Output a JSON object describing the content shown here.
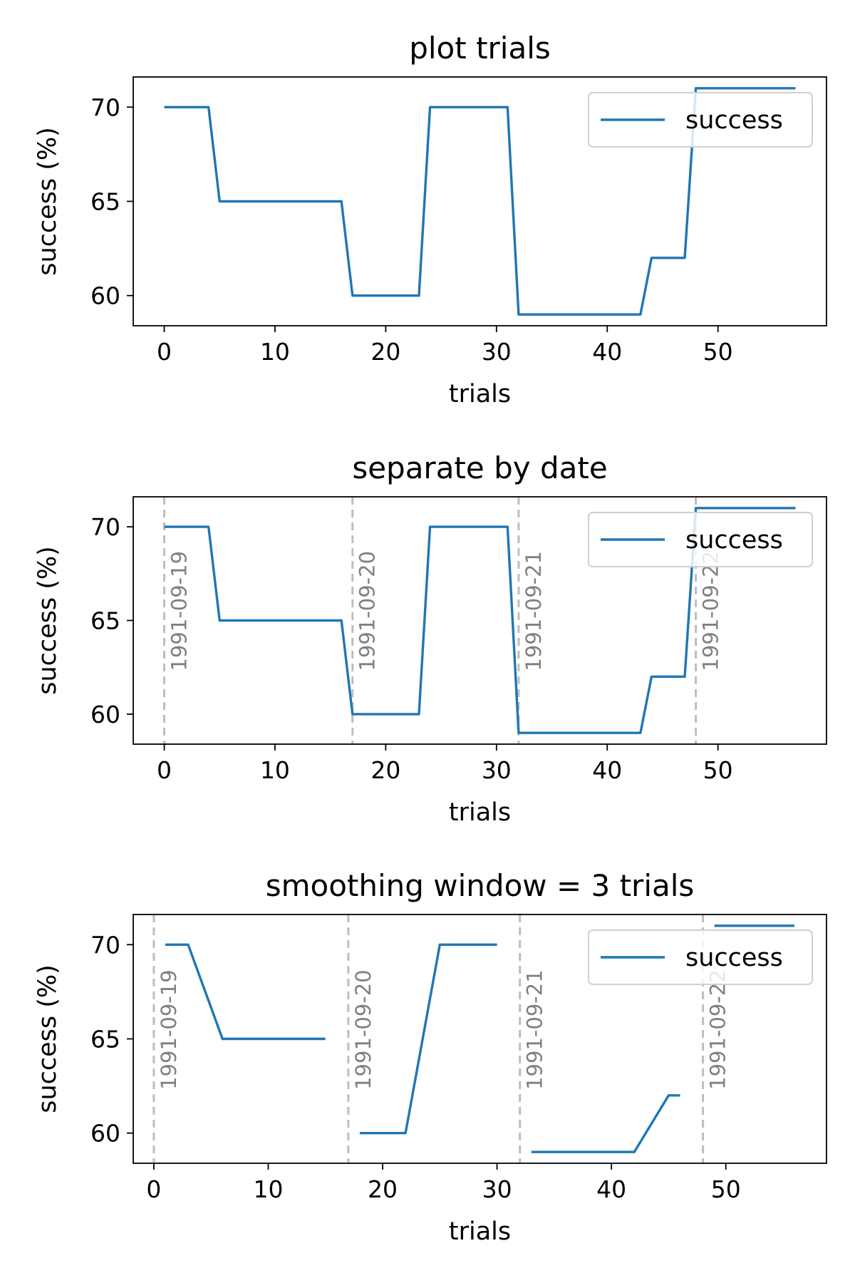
{
  "chart_data": [
    {
      "type": "line",
      "title": "plot trials",
      "xlabel": "trials",
      "ylabel": "success (%)",
      "xlim": [
        -2.8,
        59.8
      ],
      "ylim": [
        58.4,
        71.6
      ],
      "xticks": [
        0,
        10,
        20,
        30,
        40,
        50
      ],
      "yticks": [
        60,
        65,
        70
      ],
      "legend": {
        "position": "top-right",
        "entries": [
          "success"
        ]
      },
      "date_markers": [],
      "series": [
        {
          "name": "success",
          "x": [
            0,
            1,
            2,
            3,
            4,
            5,
            6,
            7,
            8,
            9,
            10,
            11,
            12,
            13,
            14,
            15,
            16,
            17,
            18,
            19,
            20,
            21,
            22,
            23,
            24,
            25,
            26,
            27,
            28,
            29,
            30,
            31,
            32,
            33,
            34,
            35,
            36,
            37,
            38,
            39,
            40,
            41,
            42,
            43,
            44,
            45,
            46,
            47,
            48,
            49,
            50,
            51,
            52,
            53,
            54,
            55,
            56,
            57
          ],
          "y": [
            70,
            70,
            70,
            70,
            70,
            65,
            65,
            65,
            65,
            65,
            65,
            65,
            65,
            65,
            65,
            65,
            65,
            60,
            60,
            60,
            60,
            60,
            60,
            60,
            70,
            70,
            70,
            70,
            70,
            70,
            70,
            70,
            59,
            59,
            59,
            59,
            59,
            59,
            59,
            59,
            59,
            59,
            59,
            59,
            62,
            62,
            62,
            62,
            71,
            71,
            71,
            71,
            71,
            71,
            71,
            71,
            71,
            71
          ]
        }
      ]
    },
    {
      "type": "line",
      "title": "separate by date",
      "xlabel": "trials",
      "ylabel": "success (%)",
      "xlim": [
        -2.8,
        59.8
      ],
      "ylim": [
        58.4,
        71.6
      ],
      "xticks": [
        0,
        10,
        20,
        30,
        40,
        50
      ],
      "yticks": [
        60,
        65,
        70
      ],
      "legend": {
        "position": "top-right",
        "entries": [
          "success"
        ]
      },
      "date_markers": [
        {
          "x": 0,
          "label": "1991-09-19"
        },
        {
          "x": 17,
          "label": "1991-09-20"
        },
        {
          "x": 32,
          "label": "1991-09-21"
        },
        {
          "x": 48,
          "label": "1991-09-22"
        }
      ],
      "series": [
        {
          "name": "success",
          "x": [
            0,
            1,
            2,
            3,
            4,
            5,
            6,
            7,
            8,
            9,
            10,
            11,
            12,
            13,
            14,
            15,
            16,
            17,
            18,
            19,
            20,
            21,
            22,
            23,
            24,
            25,
            26,
            27,
            28,
            29,
            30,
            31,
            32,
            33,
            34,
            35,
            36,
            37,
            38,
            39,
            40,
            41,
            42,
            43,
            44,
            45,
            46,
            47,
            48,
            49,
            50,
            51,
            52,
            53,
            54,
            55,
            56,
            57
          ],
          "y": [
            70,
            70,
            70,
            70,
            70,
            65,
            65,
            65,
            65,
            65,
            65,
            65,
            65,
            65,
            65,
            65,
            65,
            60,
            60,
            60,
            60,
            60,
            60,
            60,
            70,
            70,
            70,
            70,
            70,
            70,
            70,
            70,
            59,
            59,
            59,
            59,
            59,
            59,
            59,
            59,
            59,
            59,
            59,
            59,
            62,
            62,
            62,
            62,
            71,
            71,
            71,
            71,
            71,
            71,
            71,
            71,
            71,
            71
          ]
        }
      ]
    },
    {
      "type": "line",
      "title": "smoothing window = 3 trials",
      "xlabel": "trials",
      "ylabel": "success (%)",
      "xlim": [
        -1.8,
        58.8
      ],
      "ylim": [
        58.4,
        71.6
      ],
      "xticks": [
        0,
        10,
        20,
        30,
        40,
        50
      ],
      "yticks": [
        60,
        65,
        70
      ],
      "legend": {
        "position": "top-right",
        "entries": [
          "success"
        ]
      },
      "date_markers": [
        {
          "x": 0,
          "label": "1991-09-19"
        },
        {
          "x": 17,
          "label": "1991-09-20"
        },
        {
          "x": 32,
          "label": "1991-09-21"
        },
        {
          "x": 48,
          "label": "1991-09-22"
        }
      ],
      "series": [
        {
          "name": "success",
          "segments": [
            {
              "x": [
                1,
                2,
                3,
                4,
                5,
                6,
                7,
                8,
                9,
                10,
                11,
                12,
                13,
                14,
                15
              ],
              "y": [
                70,
                70,
                70,
                68.33,
                66.67,
                65,
                65,
                65,
                65,
                65,
                65,
                65,
                65,
                65,
                65
              ]
            },
            {
              "x": [
                18,
                19,
                20,
                21,
                22,
                23,
                24,
                25,
                26,
                27,
                28,
                29,
                30
              ],
              "y": [
                60,
                60,
                60,
                60,
                60,
                63.33,
                66.67,
                70,
                70,
                70,
                70,
                70,
                70
              ]
            },
            {
              "x": [
                33,
                34,
                35,
                36,
                37,
                38,
                39,
                40,
                41,
                42,
                43,
                44,
                45,
                46
              ],
              "y": [
                59,
                59,
                59,
                59,
                59,
                59,
                59,
                59,
                59,
                59,
                60,
                61,
                62,
                62
              ]
            },
            {
              "x": [
                49,
                50,
                51,
                52,
                53,
                54,
                55,
                56
              ],
              "y": [
                71,
                71,
                71,
                71,
                71,
                71,
                71,
                71
              ]
            }
          ]
        }
      ]
    }
  ]
}
